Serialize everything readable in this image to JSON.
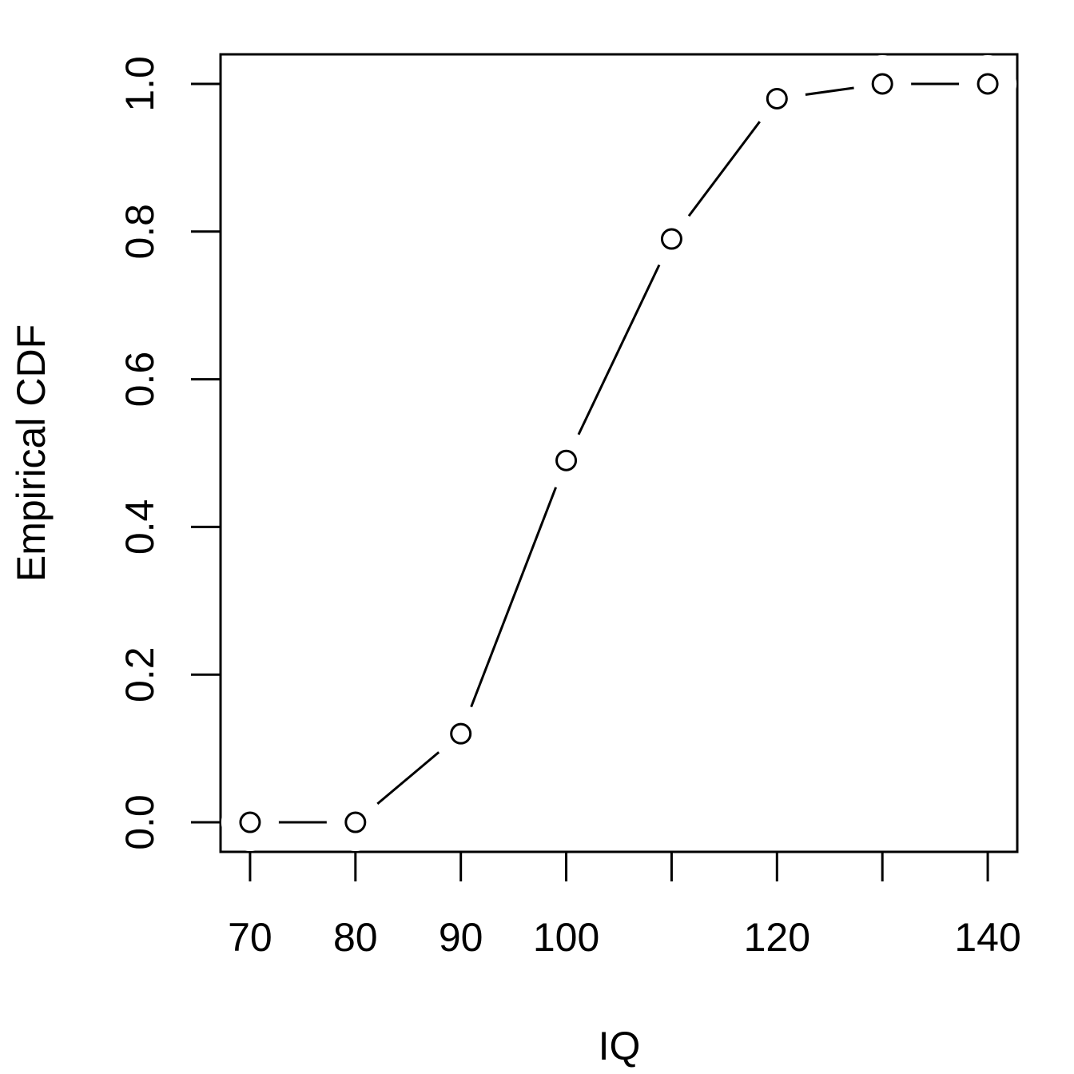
{
  "chart_data": {
    "type": "line",
    "x_label": "IQ",
    "y_label": "Empirical CDF",
    "x": [
      70,
      80,
      90,
      100,
      110,
      120,
      130,
      140
    ],
    "series": [
      {
        "color": "#000000",
        "values": [
          0,
          0,
          0.12,
          0.49,
          0.79,
          0.98,
          1.0,
          1.0
        ]
      }
    ],
    "xlim": [
      67.2,
      142.8
    ],
    "ylim": [
      -0.04,
      1.04
    ],
    "xticks": [
      70,
      80,
      90,
      100,
      {
        "value": 110,
        "label": null
      },
      120,
      {
        "value": 130,
        "label": null
      },
      140
    ],
    "yticks": [
      {
        "value": 0,
        "label": "0.0"
      },
      0.2,
      0.4,
      0.6,
      0.8,
      {
        "value": 1,
        "label": "1.0"
      }
    ],
    "markers": "open-circle",
    "grid": false
  }
}
